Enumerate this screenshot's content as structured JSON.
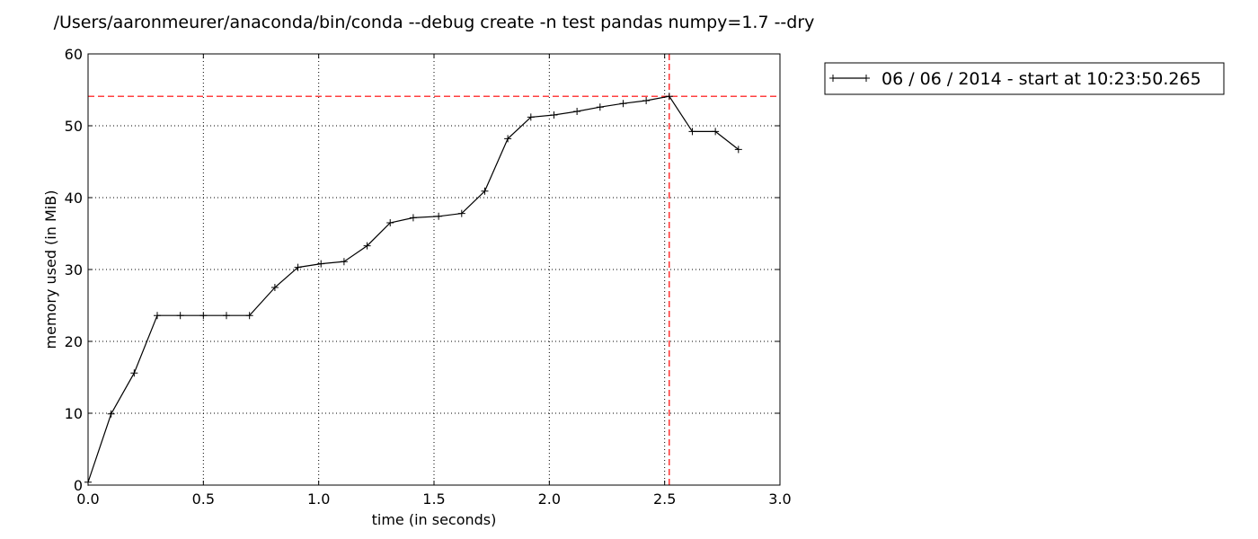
{
  "chart_data": {
    "type": "line",
    "title": "/Users/aaronmeurer/anaconda/bin/conda --debug create -n test pandas numpy=1.7 --dry",
    "xlabel": "time (in seconds)",
    "ylabel": "memory used (in MiB)",
    "xlim": [
      0,
      3
    ],
    "ylim": [
      0,
      60
    ],
    "xticks": [
      "0.0",
      "0.5",
      "1.0",
      "1.5",
      "2.0",
      "2.5",
      "3.0"
    ],
    "yticks": [
      "0",
      "10",
      "20",
      "30",
      "40",
      "50",
      "60"
    ],
    "grid": true,
    "legend_position": "outside-top-right",
    "series": [
      {
        "name": "06 / 06 / 2014 - start at 10:23:50.265",
        "color": "#000000",
        "marker": "+",
        "x": [
          0.0,
          0.1,
          0.2,
          0.3,
          0.4,
          0.5,
          0.6,
          0.7,
          0.81,
          0.91,
          1.01,
          1.11,
          1.21,
          1.31,
          1.41,
          1.52,
          1.62,
          1.72,
          1.82,
          1.92,
          2.02,
          2.12,
          2.22,
          2.32,
          2.42,
          2.52,
          2.62,
          2.72,
          2.82
        ],
        "y": [
          0.4,
          9.9,
          15.6,
          23.6,
          23.6,
          23.6,
          23.6,
          23.6,
          27.5,
          30.3,
          30.8,
          31.1,
          33.3,
          36.5,
          37.2,
          37.4,
          37.8,
          40.9,
          48.2,
          51.2,
          51.5,
          52.0,
          52.6,
          53.1,
          53.5,
          54.1,
          49.2,
          49.2,
          46.7
        ]
      }
    ],
    "reference_lines": {
      "color": "#ff0000",
      "style": "dashed",
      "horizontal_y": 54.1,
      "vertical_x": 2.52
    }
  }
}
